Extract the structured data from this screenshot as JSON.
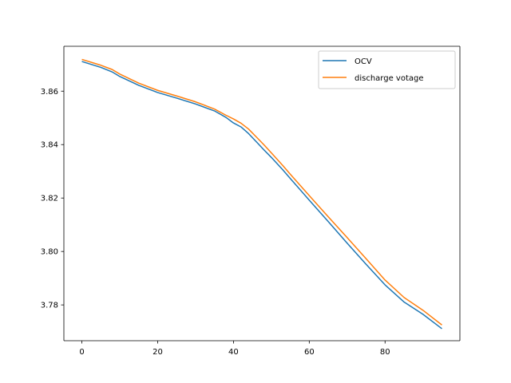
{
  "chart_data": {
    "type": "line",
    "title": "",
    "xlabel": "",
    "ylabel": "",
    "xlim": [
      -4.75,
      99.75
    ],
    "ylim": [
      3.7666,
      3.8768
    ],
    "xticks": [
      0,
      20,
      40,
      60,
      80
    ],
    "yticks": [
      3.78,
      3.8,
      3.82,
      3.84,
      3.86
    ],
    "xtick_labels": [
      "0",
      "20",
      "40",
      "60",
      "80"
    ],
    "ytick_labels": [
      "3.78",
      "3.80",
      "3.82",
      "3.84",
      "3.86"
    ],
    "grid": false,
    "legend_position": "upper right",
    "x": [
      0,
      5,
      8,
      10,
      15,
      20,
      25,
      30,
      35,
      38,
      40,
      42,
      44,
      46,
      48,
      50,
      53,
      55,
      60,
      65,
      70,
      75,
      80,
      85,
      90,
      95
    ],
    "series": [
      {
        "name": "OCV",
        "color": "#1f77b4",
        "values": [
          3.8711,
          3.8689,
          3.8672,
          3.8655,
          3.8622,
          3.8595,
          3.8574,
          3.8552,
          3.8526,
          3.8502,
          3.8481,
          3.8466,
          3.8441,
          3.8411,
          3.8381,
          3.8352,
          3.8306,
          3.8273,
          3.8192,
          3.8112,
          3.8031,
          3.7952,
          3.7875,
          3.7811,
          3.7765,
          3.7711
        ]
      },
      {
        "name": "discharge votage",
        "color": "#ff7f0e",
        "values": [
          3.8719,
          3.8697,
          3.8681,
          3.8664,
          3.863,
          3.8603,
          3.8582,
          3.856,
          3.8533,
          3.851,
          3.8496,
          3.848,
          3.8458,
          3.8429,
          3.84,
          3.8369,
          3.8322,
          3.8289,
          3.8209,
          3.813,
          3.8052,
          3.7973,
          3.7893,
          3.7828,
          3.778,
          3.7725
        ]
      }
    ]
  }
}
